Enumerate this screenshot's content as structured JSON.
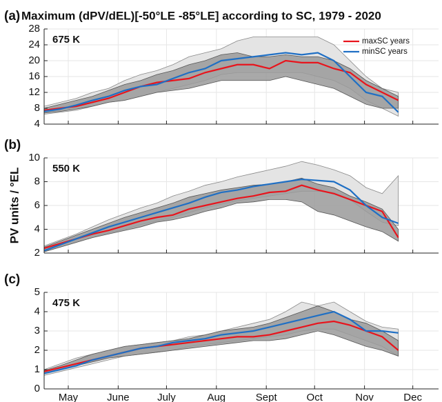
{
  "chart_data": [
    {
      "type": "line",
      "panel_label": "(a)",
      "title": "Maximum (dPV/dEL)[-50°LE -85°LE] according to SC, 1979 - 2020",
      "annotation": "675 K",
      "x": [
        0,
        10,
        20,
        30,
        40,
        50,
        60,
        70,
        80,
        90,
        100,
        110,
        120,
        130,
        140,
        150,
        160,
        170,
        180,
        190,
        200,
        210,
        220
      ],
      "xlim": [
        0,
        245
      ],
      "ylim": [
        4,
        28
      ],
      "yticks": [
        4,
        8,
        12,
        16,
        20,
        24,
        28
      ],
      "grid": true,
      "legend": "top-right",
      "series": [
        {
          "name": "maxSC years",
          "color": "#e8141c",
          "values": [
            7.5,
            8,
            8.5,
            9.5,
            10.5,
            12,
            13.5,
            14.5,
            15,
            15.5,
            17,
            18,
            19,
            19,
            18,
            20,
            19.5,
            19.5,
            18,
            17,
            14,
            12,
            10
          ]
        },
        {
          "name": "minSC years",
          "color": "#1f6fc4",
          "values": [
            7.2,
            7.8,
            8.8,
            10,
            11,
            12.5,
            13.5,
            14,
            15.5,
            17,
            18,
            20,
            20.5,
            21,
            21.5,
            22,
            21.5,
            22,
            20,
            16,
            12,
            11,
            7
          ]
        }
      ],
      "bands": [
        {
          "color": "#e4e4e4",
          "upper": [
            8.5,
            9.5,
            10.5,
            12,
            13,
            15,
            16.5,
            17.5,
            19,
            21,
            22,
            23,
            25,
            26,
            26,
            26,
            26,
            26,
            24,
            20,
            16,
            13,
            12
          ],
          "lower": [
            6.5,
            7,
            7.5,
            8.5,
            9.5,
            10,
            11,
            12,
            13,
            14,
            15,
            16.5,
            17,
            17,
            17,
            17,
            17,
            16,
            15,
            13,
            10,
            8,
            6
          ]
        },
        {
          "color": "#9a9a9a",
          "upper": [
            8,
            9,
            10,
            11,
            12.5,
            14,
            15,
            16.5,
            17.5,
            19,
            20,
            21.5,
            22,
            21,
            21,
            21.5,
            21,
            21,
            20,
            18,
            15,
            13,
            11
          ],
          "lower": [
            6.8,
            7.2,
            7.8,
            8.5,
            9.5,
            10,
            11,
            12,
            12.5,
            13,
            14,
            15,
            15,
            15,
            15,
            16,
            15,
            14,
            13,
            11,
            9,
            8,
            8
          ]
        }
      ]
    },
    {
      "type": "line",
      "panel_label": "(b)",
      "annotation": "550 K",
      "ylabel": "PV units / °EL",
      "x": [
        0,
        10,
        20,
        30,
        40,
        50,
        60,
        70,
        80,
        90,
        100,
        110,
        120,
        130,
        140,
        150,
        160,
        170,
        180,
        190,
        200,
        210,
        220
      ],
      "xlim": [
        0,
        245
      ],
      "ylim": [
        2,
        10
      ],
      "yticks": [
        2,
        4,
        6,
        8,
        10
      ],
      "grid": true,
      "series": [
        {
          "color": "#e8141c",
          "values": [
            2.4,
            2.8,
            3.2,
            3.6,
            3.9,
            4.3,
            4.7,
            5,
            5.2,
            5.7,
            6,
            6.3,
            6.6,
            6.8,
            7.1,
            7.2,
            7.7,
            7.3,
            7,
            6.5,
            6,
            5.5,
            3.3
          ]
        },
        {
          "color": "#1f6fc4",
          "values": [
            2.2,
            2.7,
            3.2,
            3.7,
            4.2,
            4.6,
            5,
            5.4,
            5.8,
            6.2,
            6.7,
            7.1,
            7.3,
            7.6,
            7.8,
            8,
            8.2,
            8.1,
            8,
            7.3,
            6,
            5,
            4.5
          ]
        }
      ],
      "bands": [
        {
          "color": "#e4e4e4",
          "upper": [
            2.6,
            3.1,
            3.6,
            4.2,
            4.8,
            5.3,
            5.8,
            6.2,
            6.8,
            7.2,
            7.7,
            8,
            8.4,
            8.7,
            9,
            9.3,
            9.7,
            9.4,
            9,
            8.5,
            7.5,
            7,
            8.5
          ],
          "lower": [
            2.1,
            2.5,
            2.9,
            3.3,
            3.7,
            4,
            4.4,
            4.7,
            5,
            5.4,
            5.8,
            6.1,
            6.4,
            6.6,
            6.8,
            7,
            7.2,
            7.2,
            7.1,
            6.5,
            5.5,
            4.6,
            4.3
          ]
        },
        {
          "color": "#9a9a9a",
          "upper": [
            2.5,
            3,
            3.5,
            4,
            4.5,
            5,
            5.4,
            5.8,
            6.2,
            6.7,
            7,
            7.3,
            7.5,
            7.7,
            7.8,
            8,
            8.3,
            7.8,
            7.5,
            6.8,
            6.3,
            5.7,
            4
          ],
          "lower": [
            2.1,
            2.5,
            2.9,
            3.3,
            3.6,
            3.9,
            4.2,
            4.6,
            4.8,
            5.1,
            5.5,
            5.8,
            6.2,
            6.3,
            6.5,
            6.5,
            6.3,
            5.5,
            5.2,
            4.7,
            4.2,
            3.8,
            3
          ]
        }
      ]
    },
    {
      "type": "line",
      "panel_label": "(c)",
      "annotation": "475 K",
      "x": [
        0,
        10,
        20,
        30,
        40,
        50,
        60,
        70,
        80,
        90,
        100,
        110,
        120,
        130,
        140,
        150,
        160,
        170,
        180,
        190,
        200,
        210,
        220
      ],
      "xlim": [
        0,
        245
      ],
      "ylim": [
        0,
        5
      ],
      "yticks": [
        0,
        1,
        2,
        3,
        4,
        5
      ],
      "grid": true,
      "xticks": [
        {
          "value": 15,
          "label": "May"
        },
        {
          "value": 46,
          "label": "June"
        },
        {
          "value": 76,
          "label": "July"
        },
        {
          "value": 107,
          "label": "Aug"
        },
        {
          "value": 138,
          "label": "Sept"
        },
        {
          "value": 168,
          "label": "Oct"
        },
        {
          "value": 199,
          "label": "Nov"
        },
        {
          "value": 229,
          "label": "Dec"
        }
      ],
      "series": [
        {
          "color": "#e8141c",
          "values": [
            0.9,
            1.1,
            1.3,
            1.5,
            1.7,
            1.9,
            2.1,
            2.2,
            2.3,
            2.4,
            2.5,
            2.6,
            2.7,
            2.7,
            2.8,
            3,
            3.2,
            3.4,
            3.5,
            3.3,
            3,
            2.7,
            2
          ]
        },
        {
          "color": "#1f6fc4",
          "values": [
            0.8,
            1,
            1.2,
            1.5,
            1.7,
            1.9,
            2.1,
            2.2,
            2.4,
            2.5,
            2.6,
            2.8,
            2.9,
            3,
            3.2,
            3.4,
            3.6,
            3.8,
            4,
            3.6,
            3,
            3,
            2.9
          ]
        }
      ],
      "bands": [
        {
          "color": "#e4e4e4",
          "upper": [
            1,
            1.3,
            1.6,
            1.8,
            2,
            2.2,
            2.3,
            2.4,
            2.5,
            2.7,
            2.8,
            3,
            3.2,
            3.4,
            3.6,
            4,
            4.5,
            4.3,
            4.5,
            4,
            3.5,
            3.2,
            3.1
          ],
          "lower": [
            0.7,
            0.9,
            1.1,
            1.3,
            1.5,
            1.7,
            1.8,
            1.9,
            2,
            2.2,
            2.3,
            2.4,
            2.5,
            2.6,
            2.7,
            2.8,
            3,
            3.1,
            3.1,
            2.8,
            2.5,
            2.2,
            1.7
          ]
        },
        {
          "color": "#9a9a9a",
          "upper": [
            0.95,
            1.2,
            1.5,
            1.8,
            2,
            2.2,
            2.3,
            2.4,
            2.5,
            2.6,
            2.8,
            3,
            3.1,
            3.2,
            3.4,
            3.7,
            4,
            4.3,
            4,
            3.6,
            3.4,
            3,
            2.5
          ],
          "lower": [
            0.8,
            1,
            1.2,
            1.4,
            1.6,
            1.7,
            1.8,
            1.9,
            2,
            2.1,
            2.2,
            2.3,
            2.4,
            2.5,
            2.5,
            2.6,
            2.8,
            3,
            2.8,
            2.5,
            2.2,
            2,
            1.7
          ]
        }
      ]
    }
  ]
}
